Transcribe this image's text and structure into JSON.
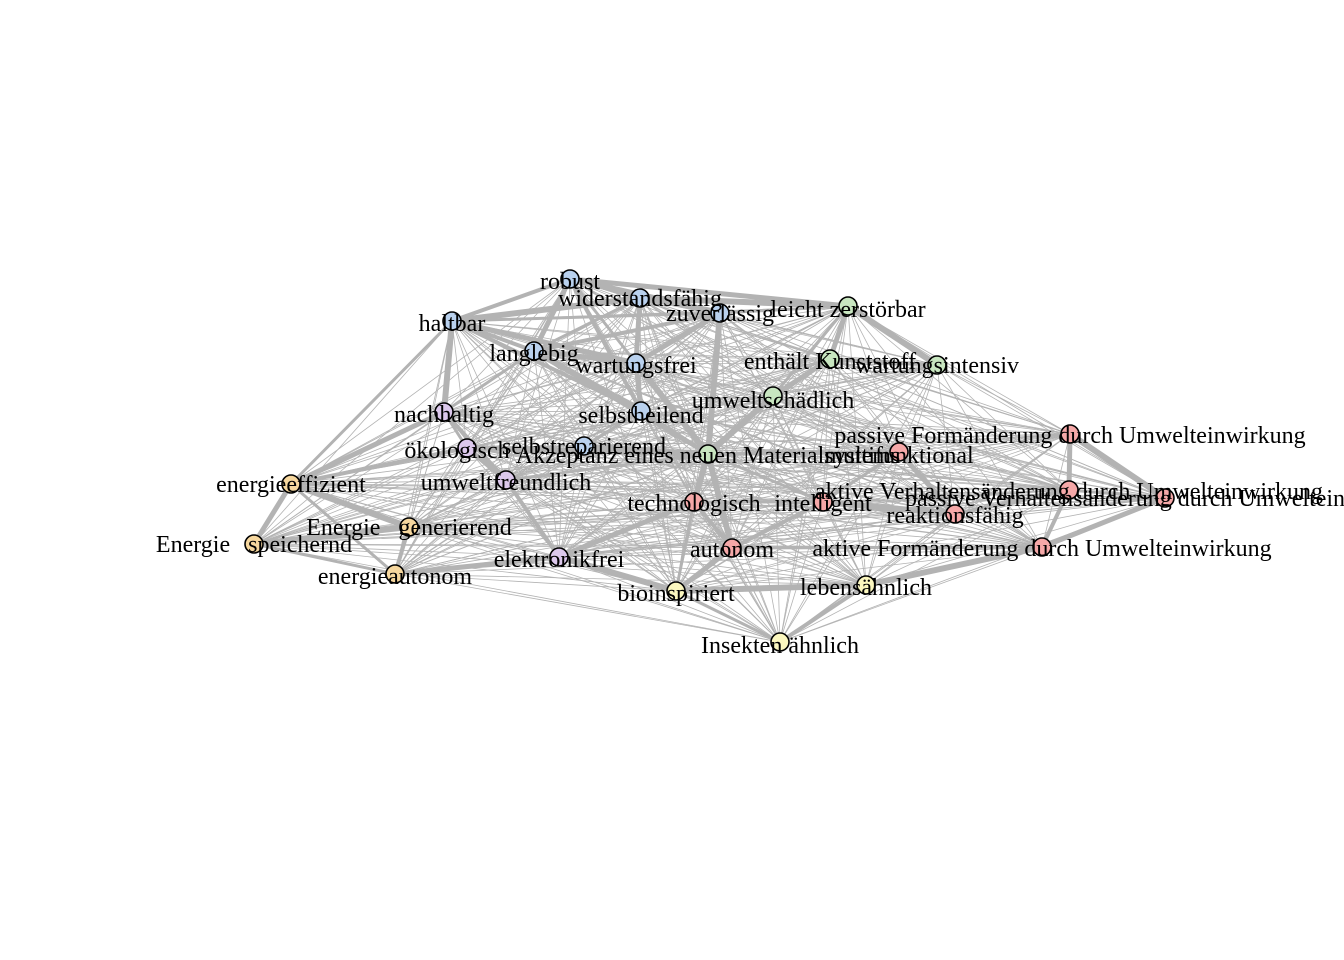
{
  "graph": {
    "type": "network",
    "colors": {
      "blue": "#b9d1ee",
      "green": "#c8e6c0",
      "purple": "#dcc8ec",
      "orange": "#f6d79e",
      "red": "#f5a8a8",
      "yellow": "#fbf7bf",
      "edge": "#b3b3b3"
    },
    "nodes": [
      {
        "id": "robust",
        "label": "robust",
        "group": "blue"
      },
      {
        "id": "widerstandsfaehig",
        "label": "widerstandsfähig",
        "group": "blue"
      },
      {
        "id": "zuverlaessig",
        "label": "zuverlässig",
        "group": "blue"
      },
      {
        "id": "haltbar",
        "label": "haltbar",
        "group": "blue"
      },
      {
        "id": "langlebig",
        "label": "langlebig",
        "group": "blue"
      },
      {
        "id": "wartungsfrei",
        "label": "wartungsfrei",
        "group": "blue"
      },
      {
        "id": "selbstheilend",
        "label": "selbstheilend",
        "group": "blue"
      },
      {
        "id": "selbstreparierend",
        "label": "selbstreparierend",
        "group": "blue"
      },
      {
        "id": "leicht_zerstoerbar",
        "label": "leicht zerstörbar",
        "group": "green"
      },
      {
        "id": "enthaelt_kunststoff",
        "label": "enthält Kunststoff",
        "group": "green"
      },
      {
        "id": "wartungsintensiv",
        "label": "wartungsintensiv",
        "group": "green"
      },
      {
        "id": "umweltschaedlich",
        "label": "umweltschädlich",
        "group": "green"
      },
      {
        "id": "akzeptanz",
        "label": "Akzeptanz eines neuen Materialsystems",
        "group": "green"
      },
      {
        "id": "nachhaltig",
        "label": "nachhaltig",
        "group": "purple"
      },
      {
        "id": "oekologisch",
        "label": "ökologisch",
        "group": "purple"
      },
      {
        "id": "umweltfreundlich",
        "label": "umweltfreundlich",
        "group": "purple"
      },
      {
        "id": "elektronikfrei",
        "label": "elektronikfrei",
        "group": "purple"
      },
      {
        "id": "energieeffizient",
        "label": "energieeffizient",
        "group": "orange"
      },
      {
        "id": "energie_generierend",
        "label": "Energie   generierend",
        "group": "orange"
      },
      {
        "id": "energie_speichernd",
        "label": "Energie   speichernd",
        "group": "orange"
      },
      {
        "id": "energieautonom",
        "label": "energieautonom",
        "group": "orange"
      },
      {
        "id": "passive_formaenderung",
        "label": "passive Formänderung durch Umwelteinwirkung",
        "group": "red"
      },
      {
        "id": "multifunktional",
        "label": "multifunktional",
        "group": "red"
      },
      {
        "id": "aktive_verhaltensaenderung",
        "label": "aktive Verhaltensänderung durch Umwelteinwirkung",
        "group": "red"
      },
      {
        "id": "passive_verhaltensaenderung",
        "label": "passive Verhaltensänderung durch Umwelteinwirkung",
        "group": "red"
      },
      {
        "id": "technologisch",
        "label": "technologisch",
        "group": "red"
      },
      {
        "id": "intelligent",
        "label": "intelligent",
        "group": "red"
      },
      {
        "id": "reaktionsfaehig",
        "label": "reaktionsfähig",
        "group": "red"
      },
      {
        "id": "autonom",
        "label": "autonom",
        "group": "red"
      },
      {
        "id": "aktive_formaenderung",
        "label": "aktive Formänderung durch Umwelteinwirkung",
        "group": "red"
      },
      {
        "id": "bioinspiriert",
        "label": "bioinspiriert",
        "group": "yellow"
      },
      {
        "id": "lebensaehnlich",
        "label": "lebensähnlich",
        "group": "yellow"
      },
      {
        "id": "insekten_aehnlich",
        "label": "Insekten ähnlich",
        "group": "yellow"
      }
    ],
    "strong_edges": [
      [
        "robust",
        "widerstandsfaehig"
      ],
      [
        "robust",
        "haltbar"
      ],
      [
        "robust",
        "langlebig"
      ],
      [
        "robust",
        "zuverlaessig"
      ],
      [
        "robust",
        "wartungsfrei"
      ],
      [
        "robust",
        "selbstheilend"
      ],
      [
        "robust",
        "leicht_zerstoerbar"
      ],
      [
        "widerstandsfaehig",
        "haltbar"
      ],
      [
        "widerstandsfaehig",
        "langlebig"
      ],
      [
        "widerstandsfaehig",
        "zuverlaessig"
      ],
      [
        "widerstandsfaehig",
        "wartungsfrei"
      ],
      [
        "widerstandsfaehig",
        "leicht_zerstoerbar"
      ],
      [
        "zuverlaessig",
        "haltbar"
      ],
      [
        "zuverlaessig",
        "langlebig"
      ],
      [
        "zuverlaessig",
        "wartungsfrei"
      ],
      [
        "zuverlaessig",
        "akzeptanz"
      ],
      [
        "zuverlaessig",
        "leicht_zerstoerbar"
      ],
      [
        "haltbar",
        "langlebig"
      ],
      [
        "haltbar",
        "wartungsfrei"
      ],
      [
        "haltbar",
        "nachhaltig"
      ],
      [
        "haltbar",
        "energieeffizient"
      ],
      [
        "haltbar",
        "selbstheilend"
      ],
      [
        "langlebig",
        "wartungsfrei"
      ],
      [
        "langlebig",
        "selbstheilend"
      ],
      [
        "langlebig",
        "nachhaltig"
      ],
      [
        "langlebig",
        "akzeptanz"
      ],
      [
        "wartungsfrei",
        "selbstheilend"
      ],
      [
        "wartungsfrei",
        "akzeptanz"
      ],
      [
        "selbstheilend",
        "selbstreparierend"
      ],
      [
        "selbstheilend",
        "akzeptanz"
      ],
      [
        "leicht_zerstoerbar",
        "enthaelt_kunststoff"
      ],
      [
        "leicht_zerstoerbar",
        "wartungsintensiv"
      ],
      [
        "leicht_zerstoerbar",
        "umweltschaedlich"
      ],
      [
        "enthaelt_kunststoff",
        "wartungsintensiv"
      ],
      [
        "enthaelt_kunststoff",
        "umweltschaedlich"
      ],
      [
        "umweltschaedlich",
        "akzeptanz"
      ],
      [
        "nachhaltig",
        "oekologisch"
      ],
      [
        "nachhaltig",
        "umweltfreundlich"
      ],
      [
        "oekologisch",
        "umweltfreundlich"
      ],
      [
        "oekologisch",
        "akzeptanz"
      ],
      [
        "umweltfreundlich",
        "akzeptanz"
      ],
      [
        "umweltfreundlich",
        "elektronikfrei"
      ],
      [
        "energieeffizient",
        "energie_speichernd"
      ],
      [
        "energieeffizient",
        "energie_generierend"
      ],
      [
        "energieeffizient",
        "energieautonom"
      ],
      [
        "energieeffizient",
        "oekologisch"
      ],
      [
        "energieeffizient",
        "nachhaltig"
      ],
      [
        "energie_speichernd",
        "energie_generierend"
      ],
      [
        "energie_speichernd",
        "energieautonom"
      ],
      [
        "energie_generierend",
        "energieautonom"
      ],
      [
        "energieautonom",
        "elektronikfrei"
      ],
      [
        "akzeptanz",
        "technologisch"
      ],
      [
        "akzeptanz",
        "intelligent"
      ],
      [
        "akzeptanz",
        "multifunktional"
      ],
      [
        "akzeptanz",
        "selbstreparierend"
      ],
      [
        "akzeptanz",
        "autonom"
      ],
      [
        "technologisch",
        "intelligent"
      ],
      [
        "technologisch",
        "autonom"
      ],
      [
        "technologisch",
        "elektronikfrei"
      ],
      [
        "intelligent",
        "reaktionsfaehig"
      ],
      [
        "intelligent",
        "multifunktional"
      ],
      [
        "intelligent",
        "autonom"
      ],
      [
        "passive_formaenderung",
        "aktive_verhaltensaenderung"
      ],
      [
        "passive_formaenderung",
        "passive_verhaltensaenderung"
      ],
      [
        "aktive_verhaltensaenderung",
        "passive_verhaltensaenderung"
      ],
      [
        "aktive_verhaltensaenderung",
        "aktive_formaenderung"
      ],
      [
        "passive_verhaltensaenderung",
        "aktive_formaenderung"
      ],
      [
        "aktive_formaenderung",
        "lebensaehnlich"
      ],
      [
        "aktive_formaenderung",
        "autonom"
      ],
      [
        "reaktionsfaehig",
        "aktive_verhaltensaenderung"
      ],
      [
        "multifunktional",
        "reaktionsfaehig"
      ],
      [
        "bioinspiriert",
        "lebensaehnlich"
      ],
      [
        "bioinspiriert",
        "insekten_aehnlich"
      ],
      [
        "lebensaehnlich",
        "insekten_aehnlich"
      ],
      [
        "bioinspiriert",
        "autonom"
      ],
      [
        "bioinspiriert",
        "elektronikfrei"
      ],
      [
        "bioinspiriert",
        "technologisch"
      ]
    ]
  }
}
